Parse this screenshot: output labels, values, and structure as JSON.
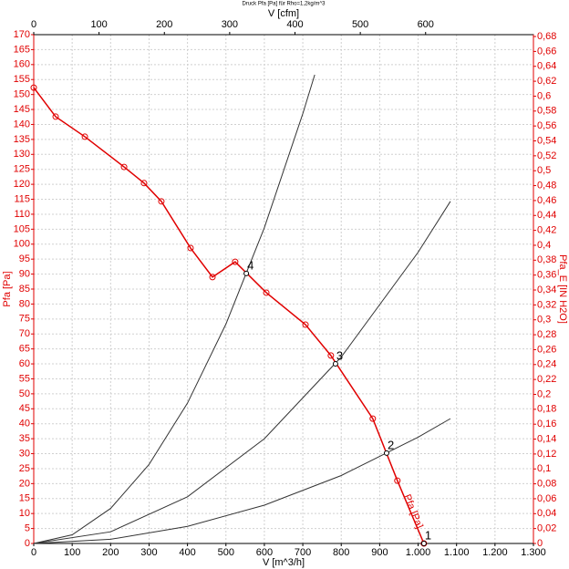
{
  "chart_data": {
    "type": "line",
    "title": "Druck Pfa [Pa] für Rho=1,2kg/m^3",
    "x_label": "V [m^3/h]",
    "x2_label": "V [cfm]",
    "y_label": "Pfa [Pa]",
    "y2_label": "Pfa_E [IN H2O]",
    "grid": true,
    "xlim": [
      0,
      1300
    ],
    "xticks": [
      0,
      100,
      200,
      300,
      400,
      500,
      600,
      700,
      800,
      900,
      {
        "value": 1000,
        "label": "1.000"
      },
      {
        "value": 1100,
        "label": "1.100"
      },
      {
        "value": 1200,
        "label": "1.200"
      },
      {
        "value": 1300,
        "label": "1.300"
      }
    ],
    "x2lim": [
      0,
      765.1
    ],
    "x2ticks": [
      0,
      100,
      200,
      300,
      400,
      500,
      600
    ],
    "ylim": [
      0,
      170
    ],
    "yticks": [
      0,
      5,
      10,
      15,
      20,
      25,
      30,
      35,
      40,
      45,
      50,
      55,
      60,
      65,
      70,
      75,
      80,
      85,
      90,
      95,
      100,
      105,
      110,
      115,
      120,
      125,
      130,
      135,
      140,
      145,
      150,
      155,
      160,
      165,
      170
    ],
    "y2lim": [
      0,
      0.6825
    ],
    "y2ticks": [
      0,
      {
        "value": 0.02,
        "label": "0,02"
      },
      {
        "value": 0.04,
        "label": "0,04"
      },
      {
        "value": 0.06,
        "label": "0,06"
      },
      {
        "value": 0.08,
        "label": "0,08"
      },
      {
        "value": 0.1,
        "label": "0,1"
      },
      {
        "value": 0.12,
        "label": "0,12"
      },
      {
        "value": 0.14,
        "label": "0,14"
      },
      {
        "value": 0.16,
        "label": "0,16"
      },
      {
        "value": 0.18,
        "label": "0,18"
      },
      {
        "value": 0.2,
        "label": "0,2"
      },
      {
        "value": 0.22,
        "label": "0,22"
      },
      {
        "value": 0.24,
        "label": "0,24"
      },
      {
        "value": 0.26,
        "label": "0,26"
      },
      {
        "value": 0.28,
        "label": "0,28"
      },
      {
        "value": 0.3,
        "label": "0,3"
      },
      {
        "value": 0.32,
        "label": "0,32"
      },
      {
        "value": 0.34,
        "label": "0,34"
      },
      {
        "value": 0.36,
        "label": "0,36"
      },
      {
        "value": 0.38,
        "label": "0,38"
      },
      {
        "value": 0.4,
        "label": "0,4"
      },
      {
        "value": 0.42,
        "label": "0,42"
      },
      {
        "value": 0.44,
        "label": "0,44"
      },
      {
        "value": 0.46,
        "label": "0,46"
      },
      {
        "value": 0.48,
        "label": "0,48"
      },
      {
        "value": 0.5,
        "label": "0,5"
      },
      {
        "value": 0.52,
        "label": "0,52"
      },
      {
        "value": 0.54,
        "label": "0,54"
      },
      {
        "value": 0.56,
        "label": "0,56"
      },
      {
        "value": 0.58,
        "label": "0,58"
      },
      {
        "value": 0.6,
        "label": "0,6"
      },
      {
        "value": 0.62,
        "label": "0,62"
      },
      {
        "value": 0.64,
        "label": "0,64"
      },
      {
        "value": 0.66,
        "label": "0,66"
      },
      {
        "value": 0.68,
        "label": "0,68"
      }
    ],
    "series": [
      {
        "name": "Pfa [Pa]",
        "color": "#e00000",
        "markers": true,
        "x": [
          0,
          57,
          133,
          235,
          287,
          332,
          408,
          465,
          524,
          605,
          707,
          773,
          882,
          946,
          1015
        ],
        "values": [
          152.3,
          142.6,
          135.9,
          125.8,
          120.4,
          114.3,
          98.7,
          89,
          94.1,
          83.8,
          73.1,
          62.8,
          41.7,
          21,
          0
        ]
      },
      {
        "color": "#333333",
        "markers": false,
        "x": [
          0,
          100,
          200,
          300,
          400,
          500,
          600,
          700,
          731
        ],
        "values": [
          0,
          2.9,
          11.7,
          26.4,
          46.9,
          73.3,
          105.5,
          143.6,
          156.6
        ]
      },
      {
        "color": "#333333",
        "markers": false,
        "x": [
          0,
          200,
          400,
          600,
          800,
          1000,
          1084
        ],
        "values": [
          0,
          3.9,
          15.6,
          35.0,
          62.3,
          97.3,
          114.3
        ]
      },
      {
        "color": "#333333",
        "markers": false,
        "x": [
          0,
          200,
          400,
          600,
          800,
          1000,
          1084
        ],
        "values": [
          0,
          1.4,
          5.7,
          12.8,
          22.7,
          35.5,
          41.7
        ]
      }
    ],
    "points": [
      {
        "label": "4",
        "x": 553,
        "y": 90.2
      },
      {
        "label": "3",
        "x": 785,
        "y": 60
      },
      {
        "label": "2",
        "x": 918,
        "y": 30.2
      },
      {
        "label": "1",
        "x": 1015,
        "y": 0
      }
    ]
  }
}
